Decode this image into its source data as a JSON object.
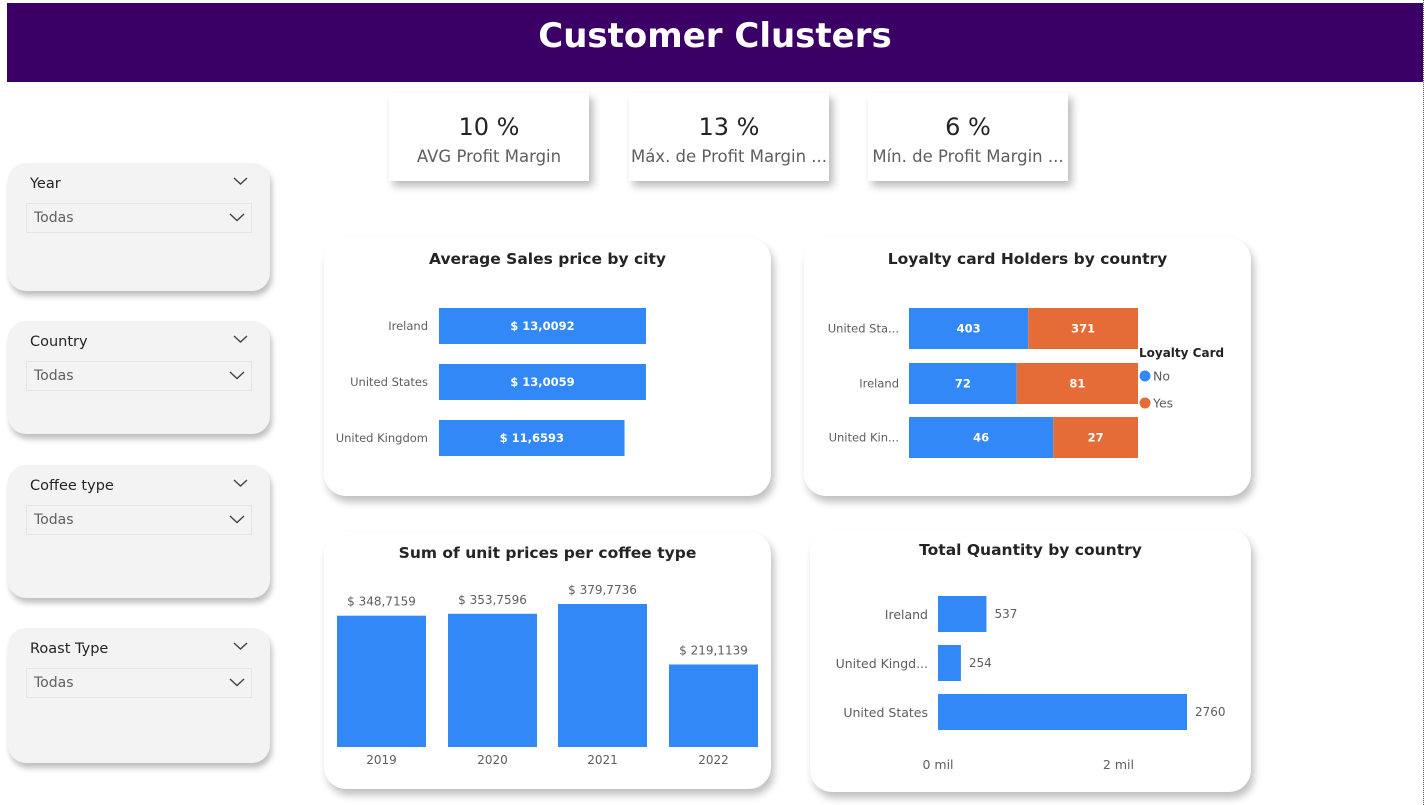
{
  "header": {
    "title": "Customer Clusters"
  },
  "kpis": [
    {
      "value": "10 %",
      "label": "AVG Profit Margin"
    },
    {
      "value": "13 %",
      "label": "Máx. de Profit Margin ..."
    },
    {
      "value": "6 %",
      "label": "Mín. de Profit Margin ..."
    }
  ],
  "slicers": [
    {
      "title": "Year",
      "value": "Todas"
    },
    {
      "title": "Country",
      "value": "Todas"
    },
    {
      "title": "Coffee type",
      "value": "Todas"
    },
    {
      "title": "Roast Type",
      "value": "Todas"
    }
  ],
  "colors": {
    "accent": "#3b0066",
    "blue": "#3288f7",
    "orange": "#e66c37"
  },
  "chart_data": [
    {
      "type": "bar",
      "orientation": "horizontal",
      "title": "Average Sales price by city",
      "categories": [
        "Ireland",
        "United States",
        "United Kingdom"
      ],
      "values": [
        13.0092,
        13.0059,
        11.6593
      ],
      "labels": [
        "$ 13,0092",
        "$ 13,0059",
        "$ 11,6593"
      ],
      "color": "#3288f7"
    },
    {
      "type": "bar",
      "orientation": "horizontal",
      "stacked": "100%",
      "title": "Loyalty card Holders by country",
      "categories": [
        "United Sta...",
        "Ireland",
        "United Kin..."
      ],
      "legend_title": "Loyalty Card",
      "series": [
        {
          "name": "No",
          "values": [
            403,
            72,
            46
          ],
          "color": "#3288f7"
        },
        {
          "name": "Yes",
          "values": [
            371,
            81,
            27
          ],
          "color": "#e66c37"
        }
      ]
    },
    {
      "type": "bar",
      "title": "Sum of unit prices per coffee type",
      "categories": [
        "2019",
        "2020",
        "2021",
        "2022"
      ],
      "values": [
        348.7159,
        353.7596,
        379.7736,
        219.1139
      ],
      "labels": [
        "$ 348,7159",
        "$ 353,7596",
        "$ 379,7736",
        "$ 219,1139"
      ],
      "color": "#3288f7"
    },
    {
      "type": "bar",
      "orientation": "horizontal",
      "title": "Total Quantity by country",
      "categories": [
        "Ireland",
        "United Kingd...",
        "United States"
      ],
      "values": [
        537,
        254,
        2760
      ],
      "labels": [
        "537",
        "254",
        "2760"
      ],
      "x_ticks": [
        "0 mil",
        "2 mil"
      ],
      "x_tick_values": [
        0,
        2000
      ],
      "color": "#3288f7"
    }
  ]
}
